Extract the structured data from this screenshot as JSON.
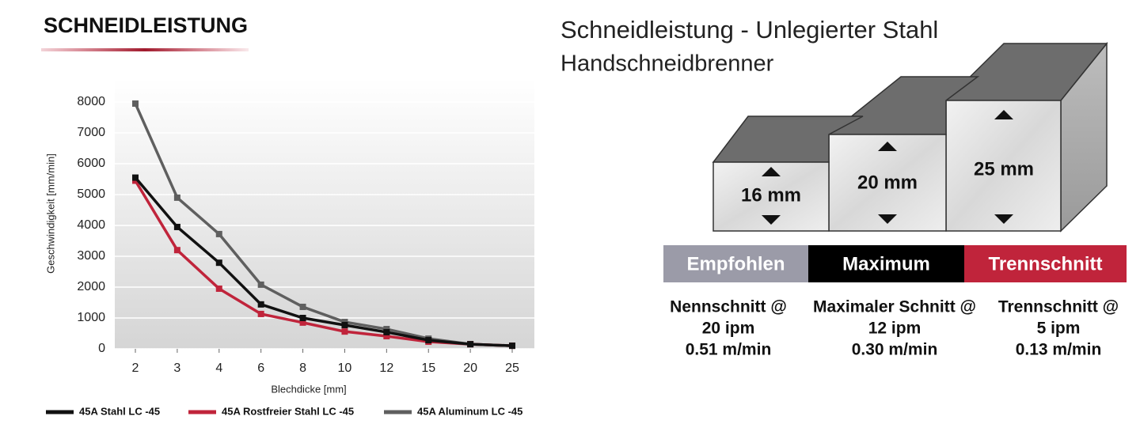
{
  "chart_data": {
    "type": "line",
    "title": "SCHNEIDLEISTUNG",
    "y_label": "Geschwindigkeit [mm/min]",
    "x_label": "Blechdicke [mm]",
    "categories": [
      "2",
      "3",
      "4",
      "6",
      "8",
      "10",
      "12",
      "15",
      "20",
      "25"
    ],
    "series": [
      {
        "name": "45A Stahl LC -45",
        "color": "#111111",
        "values": [
          5550,
          3950,
          2790,
          1440,
          1000,
          770,
          540,
          280,
          150,
          100
        ]
      },
      {
        "name": "45A Rostfreier Stahl LC -45",
        "color": "#c0243b",
        "values": [
          5450,
          3200,
          1950,
          1130,
          850,
          560,
          410,
          230,
          150,
          100
        ]
      },
      {
        "name": "45A Aluminum LC -45",
        "color": "#5f5f5f",
        "values": [
          7950,
          4900,
          3720,
          2080,
          1360,
          870,
          640,
          330,
          150,
          100
        ]
      }
    ],
    "ylim": [
      0,
      8000
    ],
    "yticks": [
      0,
      1000,
      2000,
      3000,
      4000,
      5000,
      6000,
      7000,
      8000
    ],
    "grid": true
  },
  "diagram": {
    "title": "Schneidleistung - Unlegierter Stahl",
    "subtitle": "Handschneidbrenner",
    "blocks": [
      "16 mm",
      "20 mm",
      "25 mm"
    ],
    "bands": [
      {
        "label": "Empfohlen",
        "color": "#9b9ba8"
      },
      {
        "label": "Maximum",
        "color": "#000000"
      },
      {
        "label": "Trennschnitt",
        "color": "#c0243b"
      }
    ],
    "columns": [
      [
        "Nennschnitt @",
        "20 ipm",
        "0.51 m/min"
      ],
      [
        "Maximaler Schnitt @",
        "12 ipm",
        "0.30 m/min"
      ],
      [
        "Trennschnitt @",
        "5 ipm",
        "0.13 m/min"
      ]
    ]
  }
}
